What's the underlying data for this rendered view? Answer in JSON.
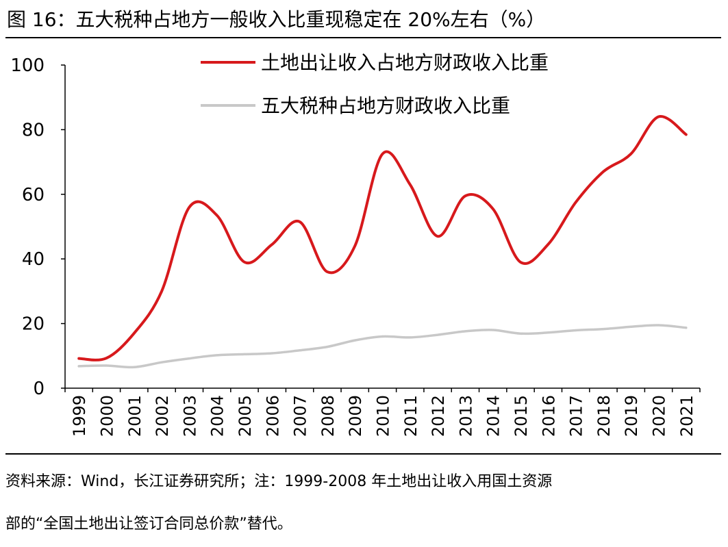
{
  "figure": {
    "title": "图 16：五大税种占地方一般收入比重现稳定在 20%左右（%）",
    "source_line1": "资料来源：Wind，长江证券研究所；注：1999-2008 年土地出让收入用国土资源",
    "source_line2": "部的“全国土地出让签订合同总价款”替代。"
  },
  "chart_data": {
    "type": "line",
    "x": [
      "1999",
      "2000",
      "2001",
      "2002",
      "2003",
      "2004",
      "2005",
      "2006",
      "2007",
      "2008",
      "2009",
      "2010",
      "2011",
      "2012",
      "2013",
      "2014",
      "2015",
      "2016",
      "2017",
      "2018",
      "2019",
      "2020",
      "2021"
    ],
    "ylim": [
      0,
      100
    ],
    "yticks": [
      0,
      20,
      40,
      60,
      80,
      100
    ],
    "grid": false,
    "legend_position": "top",
    "series": [
      {
        "name": "土地出让收入占地方财政收入比重",
        "color": "#d7191c",
        "values": [
          9.2,
          9.3,
          17.0,
          30.0,
          56.0,
          53.5,
          39.0,
          44.5,
          51.5,
          36.0,
          44.0,
          72.5,
          63.0,
          47.0,
          59.5,
          55.5,
          39.0,
          44.5,
          57.5,
          67.0,
          72.5,
          84.0,
          78.5
        ]
      },
      {
        "name": "五大税种占地方财政收入比重",
        "color": "#c8c8c8",
        "values": [
          6.8,
          7.0,
          6.5,
          8.0,
          9.2,
          10.2,
          10.5,
          10.8,
          11.7,
          12.8,
          14.8,
          16.0,
          15.7,
          16.5,
          17.6,
          18.0,
          16.9,
          17.2,
          17.9,
          18.3,
          19.0,
          19.5,
          18.7
        ]
      }
    ]
  }
}
